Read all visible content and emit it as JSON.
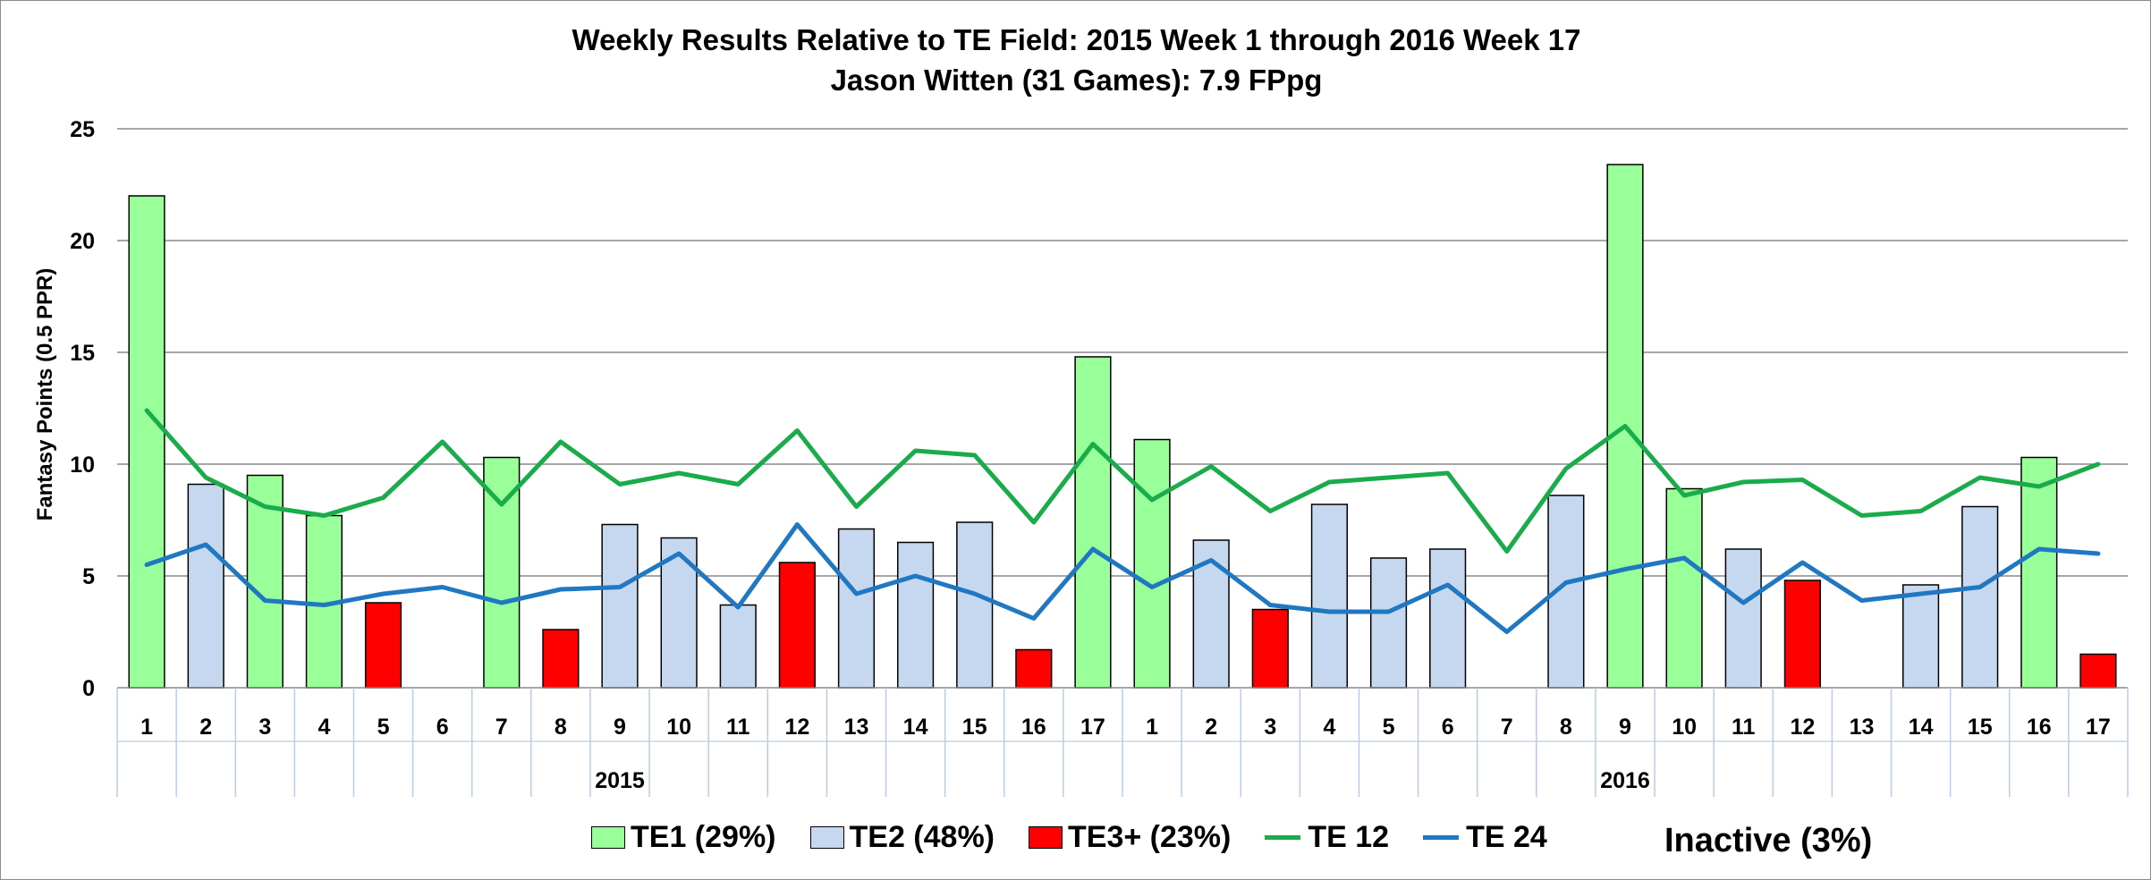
{
  "chart_data": {
    "type": "bar",
    "title": "Weekly Results Relative to TE Field: 2015 Week 1 through 2016 Week 17",
    "subtitle": "Jason Witten (31 Games): 7.9 FPpg",
    "ylabel": "Fantasy Points (0.5 PPR)",
    "xlabel": "",
    "ylim": [
      0,
      25
    ],
    "yticks": [
      "0",
      "5",
      "10",
      "15",
      "20",
      "25"
    ],
    "grid": true,
    "categories": [
      "1",
      "2",
      "3",
      "4",
      "5",
      "6",
      "7",
      "8",
      "9",
      "10",
      "11",
      "12",
      "13",
      "14",
      "15",
      "16",
      "17",
      "1",
      "2",
      "3",
      "4",
      "5",
      "6",
      "7",
      "8",
      "9",
      "10",
      "11",
      "12",
      "13",
      "14",
      "15",
      "16",
      "17"
    ],
    "groups": [
      {
        "label": "2015",
        "count": 17
      },
      {
        "label": "2016",
        "count": 17
      }
    ],
    "bars": {
      "values": [
        22.0,
        9.1,
        9.5,
        7.7,
        3.8,
        null,
        10.3,
        2.6,
        7.3,
        6.7,
        3.7,
        5.6,
        7.1,
        6.5,
        7.4,
        1.7,
        14.8,
        11.1,
        6.6,
        3.5,
        8.2,
        5.8,
        6.2,
        null,
        8.6,
        23.4,
        8.9,
        6.2,
        4.8,
        null,
        4.6,
        8.1,
        10.3,
        1.5
      ],
      "tiers": [
        "TE1",
        "TE2",
        "TE1",
        "TE1",
        "TE3+",
        null,
        "TE1",
        "TE3+",
        "TE2",
        "TE2",
        "TE2",
        "TE3+",
        "TE2",
        "TE2",
        "TE2",
        "TE3+",
        "TE1",
        "TE1",
        "TE2",
        "TE3+",
        "TE2",
        "TE2",
        "TE2",
        null,
        "TE2",
        "TE1",
        "TE1",
        "TE2",
        "TE3+",
        null,
        "TE2",
        "TE2",
        "TE1",
        "TE3+"
      ]
    },
    "series": [
      {
        "name": "TE 12",
        "color": "#1aab4b",
        "values": [
          12.4,
          9.4,
          8.1,
          7.7,
          8.5,
          11.0,
          8.2,
          11.0,
          9.1,
          9.6,
          9.1,
          11.5,
          8.1,
          10.6,
          10.4,
          7.4,
          10.9,
          8.4,
          9.9,
          7.9,
          9.2,
          9.4,
          9.6,
          6.1,
          9.8,
          11.7,
          8.6,
          9.2,
          9.3,
          7.7,
          7.9,
          9.4,
          9.0,
          10.0
        ]
      },
      {
        "name": "TE 24",
        "color": "#1f78c1",
        "values": [
          5.5,
          6.4,
          3.9,
          3.7,
          4.2,
          4.5,
          3.8,
          4.4,
          4.5,
          6.0,
          3.6,
          7.3,
          4.2,
          5.0,
          4.2,
          3.1,
          6.2,
          4.5,
          5.7,
          3.7,
          3.4,
          3.4,
          4.6,
          2.5,
          4.7,
          5.3,
          5.8,
          3.8,
          5.6,
          3.9,
          4.2,
          4.5,
          6.2,
          6.0
        ]
      }
    ],
    "tier_colors": {
      "TE1": "#99ff99",
      "TE2": "#c6d8f0",
      "TE3+": "#ff0000"
    },
    "legend": [
      {
        "label": "TE1 (29%)",
        "kind": "box",
        "color": "#99ff99"
      },
      {
        "label": "TE2 (48%)",
        "kind": "box",
        "color": "#c6d8f0"
      },
      {
        "label": "TE3+ (23%)",
        "kind": "box",
        "color": "#ff0000"
      },
      {
        "label": "TE 12",
        "kind": "line",
        "color": "#1aab4b"
      },
      {
        "label": "TE 24",
        "kind": "line",
        "color": "#1f78c1"
      }
    ],
    "legend_position": "bottom",
    "inactive_label": "Inactive (3%)"
  }
}
